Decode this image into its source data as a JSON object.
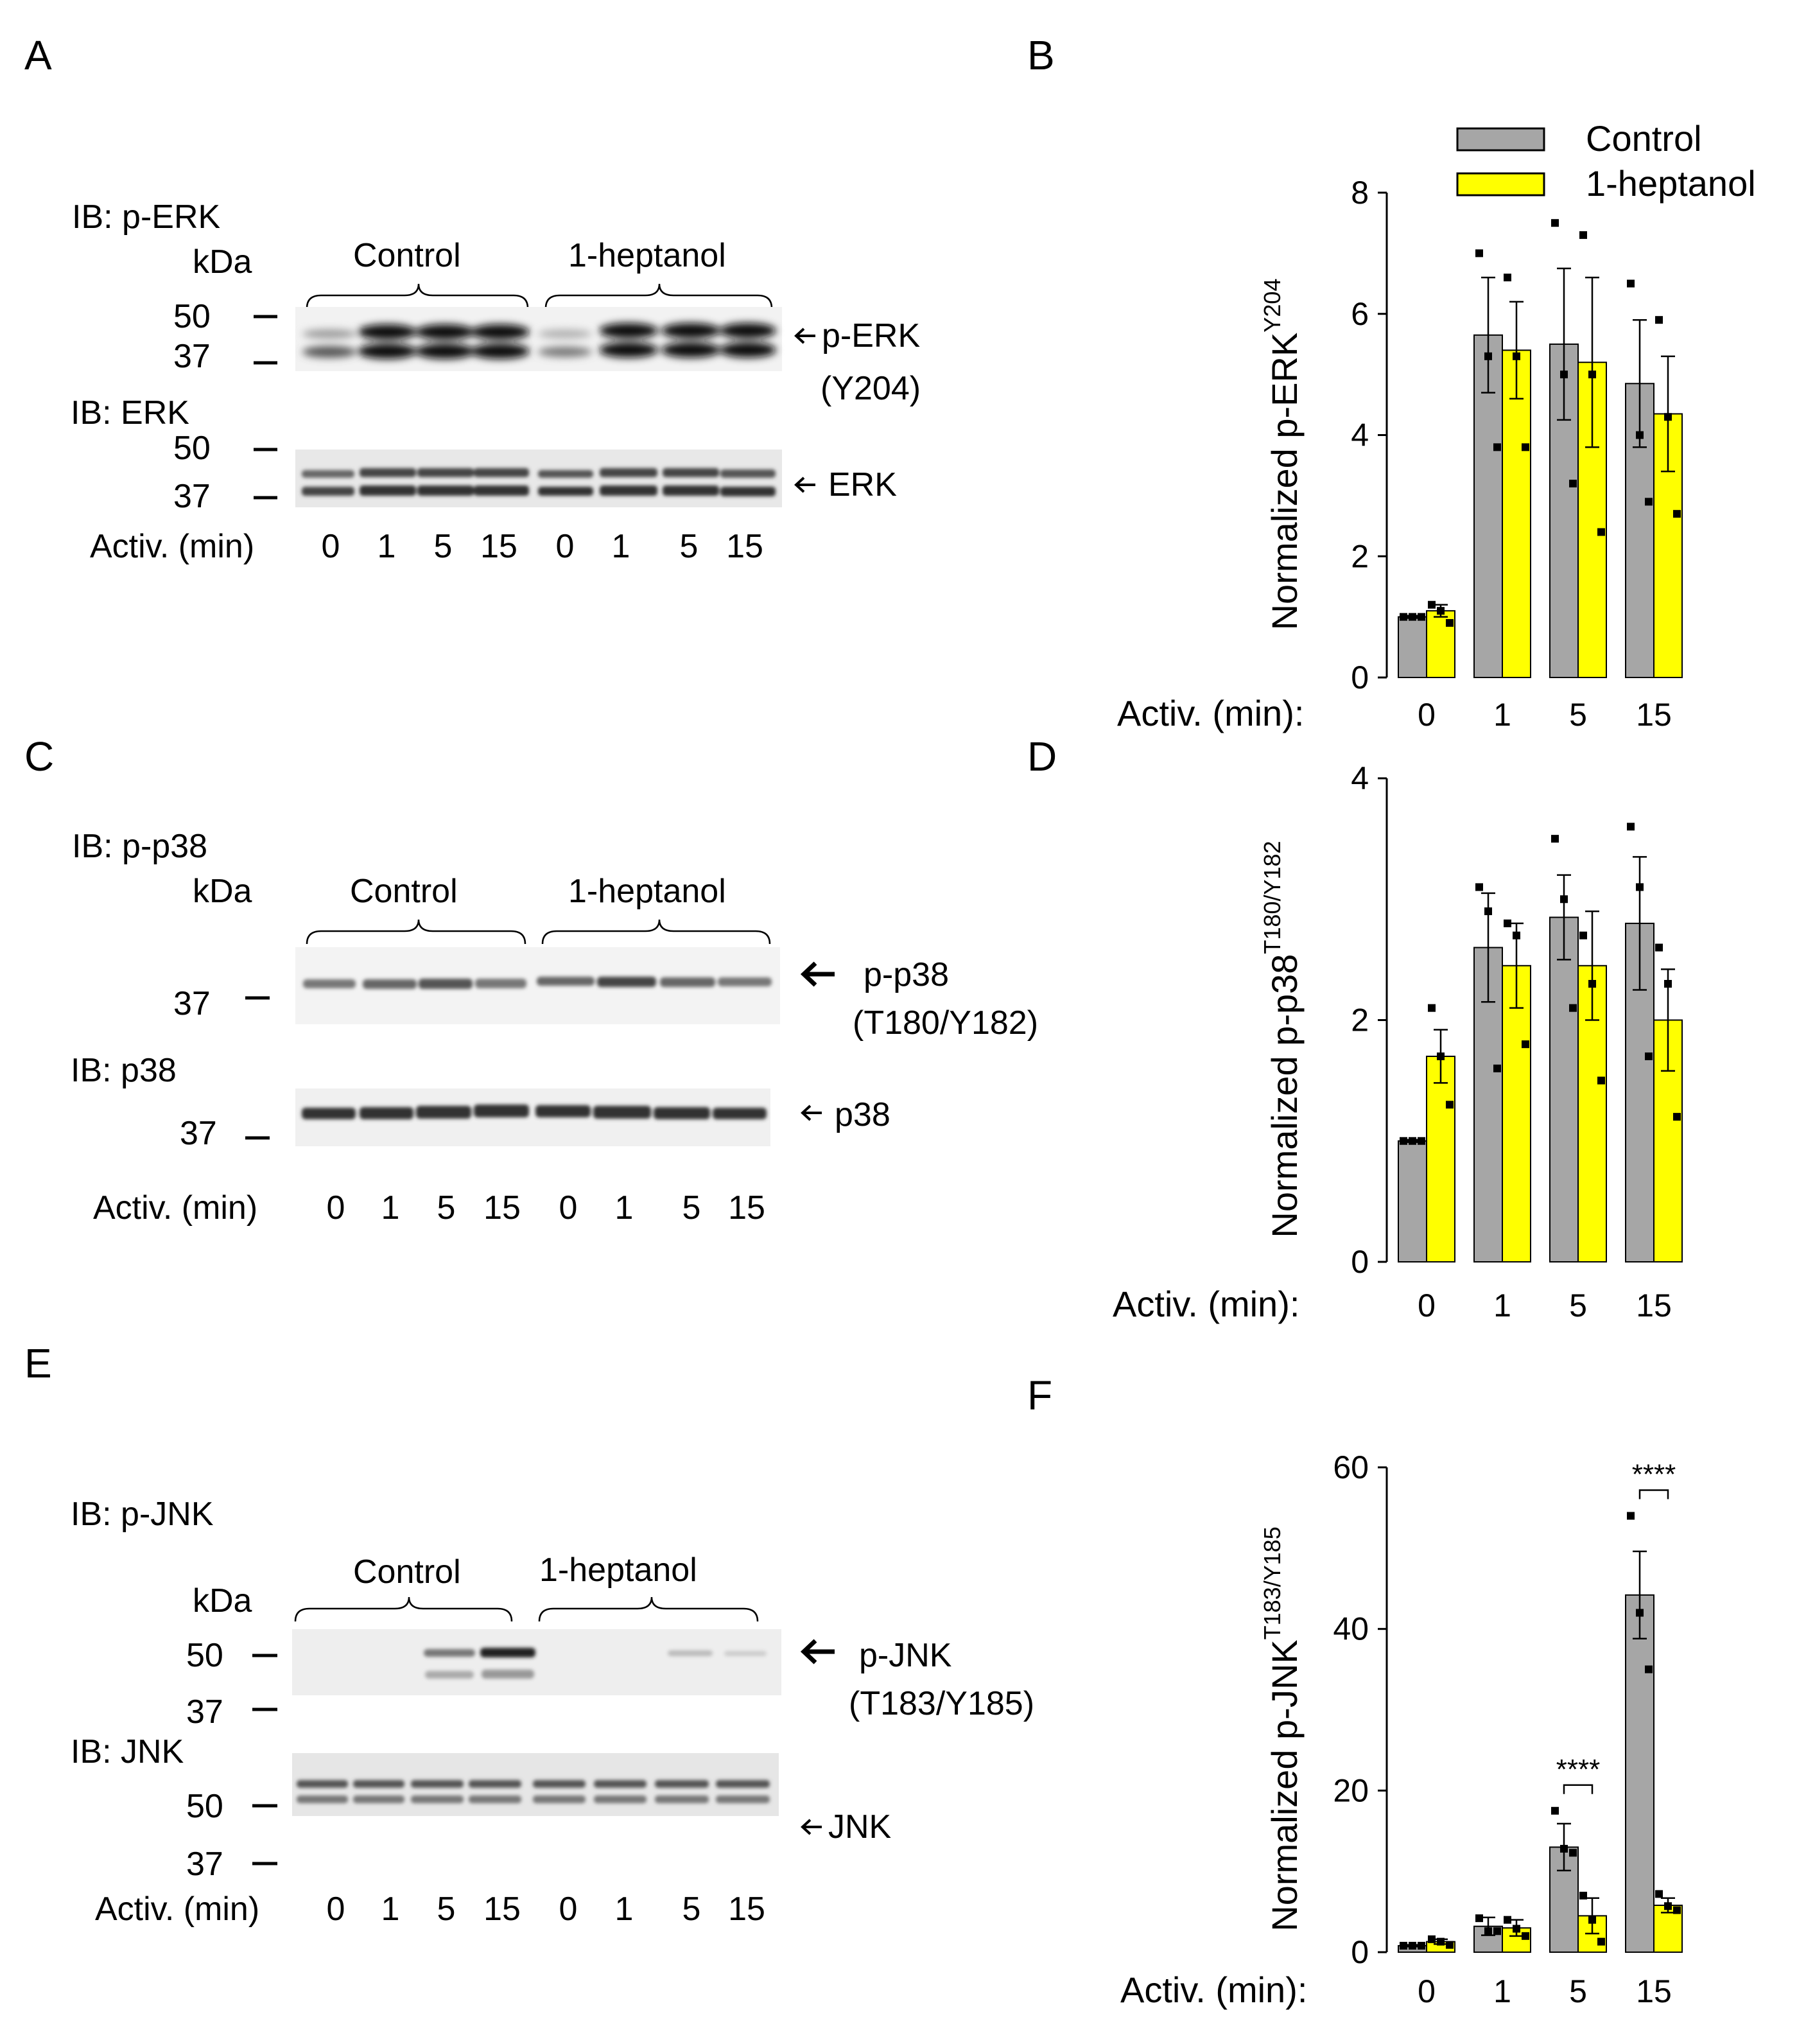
{
  "colors": {
    "control": "#a6a6a6",
    "heptanol": "#ffff00"
  },
  "panels": {
    "a": "A",
    "b": "B",
    "c": "C",
    "d": "D",
    "e": "E",
    "f": "F"
  },
  "blots": {
    "kda": "kDa",
    "control": "Control",
    "heptanol": "1-heptanol",
    "activ": "Activ. (min)",
    "lanes": [
      "0",
      "1",
      "5",
      "15",
      "0",
      "1",
      "5",
      "15"
    ],
    "erk": {
      "ib_top": "IB: p-ERK",
      "ib_bottom": "IB: ERK",
      "m50a": "50",
      "m37a": "37",
      "m50b": "50",
      "m37b": "37",
      "arrow_top_1": "p-ERK",
      "arrow_top_2": "(Y204)",
      "arrow_bottom": "ERK"
    },
    "p38": {
      "ib_top": "IB: p-p38",
      "ib_bottom": "IB: p38",
      "m37a": "37",
      "m37b": "37",
      "arrow_top_1": "p-p38",
      "arrow_top_2": "(T180/Y182)",
      "arrow_bottom": "p38"
    },
    "jnk": {
      "ib_top": "IB: p-JNK",
      "ib_bottom": "IB: JNK",
      "m50a": "50",
      "m37a": "37",
      "m50b": "50",
      "m37b": "37",
      "arrow_top_1": "p-JNK",
      "arrow_top_2": "(T183/Y185)",
      "arrow_bottom": "JNK"
    }
  },
  "chart_data": [
    {
      "type": "bar",
      "panel": "B",
      "ylabel": "Normalized p-ERK",
      "ylabel_sup": "Y204",
      "xlabel": "Activ. (min):",
      "categories": [
        "0",
        "1",
        "5",
        "15"
      ],
      "ylim": [
        0,
        8
      ],
      "yticks": [
        "0",
        "2",
        "4",
        "6",
        "8"
      ],
      "legend": [
        "Control",
        "1-heptanol"
      ],
      "series": [
        {
          "name": "Control",
          "values": [
            1.0,
            5.65,
            5.5,
            4.85
          ],
          "errors": [
            0.02,
            0.95,
            1.25,
            1.05
          ],
          "points": [
            [
              1.0,
              1.0,
              1.0
            ],
            [
              7.0,
              5.3,
              3.8
            ],
            [
              7.5,
              5.0,
              3.2
            ],
            [
              6.5,
              4.0,
              2.9
            ]
          ]
        },
        {
          "name": "1-heptanol",
          "values": [
            1.1,
            5.4,
            5.2,
            4.35
          ],
          "errors": [
            0.1,
            0.8,
            1.4,
            0.95
          ],
          "points": [
            [
              1.2,
              1.1,
              0.9
            ],
            [
              6.6,
              5.3,
              3.8
            ],
            [
              7.3,
              5.0,
              2.4
            ],
            [
              5.9,
              4.3,
              2.7
            ]
          ]
        }
      ]
    },
    {
      "type": "bar",
      "panel": "D",
      "ylabel": "Normalized p-p38",
      "ylabel_sup": "T180/Y182",
      "xlabel": "Activ. (min):",
      "categories": [
        "0",
        "1",
        "5",
        "15"
      ],
      "ylim": [
        0,
        4
      ],
      "yticks": [
        "0",
        "2",
        "4"
      ],
      "series": [
        {
          "name": "Control",
          "values": [
            1.0,
            2.6,
            2.85,
            2.8
          ],
          "errors": [
            0.01,
            0.45,
            0.35,
            0.55
          ],
          "points": [
            [
              1.0,
              1.0,
              1.0
            ],
            [
              3.1,
              2.9,
              1.6
            ],
            [
              3.5,
              3.0,
              2.1
            ],
            [
              3.6,
              3.1,
              1.7
            ]
          ]
        },
        {
          "name": "1-heptanol",
          "values": [
            1.7,
            2.45,
            2.45,
            2.0
          ],
          "errors": [
            0.22,
            0.35,
            0.45,
            0.42
          ],
          "points": [
            [
              2.1,
              1.7,
              1.3
            ],
            [
              2.8,
              2.7,
              1.8
            ],
            [
              2.7,
              2.3,
              1.5
            ],
            [
              2.6,
              2.3,
              1.2
            ]
          ]
        }
      ]
    },
    {
      "type": "bar",
      "panel": "F",
      "ylabel": "Normalized p-JNK",
      "ylabel_sup": "T183/Y185",
      "xlabel": "Activ. (min):",
      "categories": [
        "0",
        "1",
        "5",
        "15"
      ],
      "ylim": [
        0,
        60
      ],
      "yticks": [
        "0",
        "20",
        "40",
        "60"
      ],
      "series": [
        {
          "name": "Control",
          "values": [
            0.8,
            3.2,
            13.0,
            44.2
          ],
          "errors": [
            0.1,
            1.1,
            2.9,
            5.4
          ],
          "points": [
            [
              0.8,
              0.8,
              0.8
            ],
            [
              4.2,
              2.6,
              2.6
            ],
            [
              17.5,
              12.8,
              12.3
            ],
            [
              54.0,
              42.0,
              35.0
            ]
          ]
        },
        {
          "name": "1-heptanol",
          "values": [
            1.3,
            3.0,
            4.5,
            5.8
          ],
          "errors": [
            0.3,
            1.0,
            2.2,
            0.9
          ],
          "points": [
            [
              1.6,
              1.3,
              0.9
            ],
            [
              4.0,
              2.9,
              2.0
            ],
            [
              7.0,
              4.0,
              1.3
            ],
            [
              7.2,
              5.7,
              5.2
            ]
          ]
        }
      ],
      "significance": [
        {
          "category": "5",
          "label": "****"
        },
        {
          "category": "15",
          "label": "****"
        }
      ]
    }
  ]
}
